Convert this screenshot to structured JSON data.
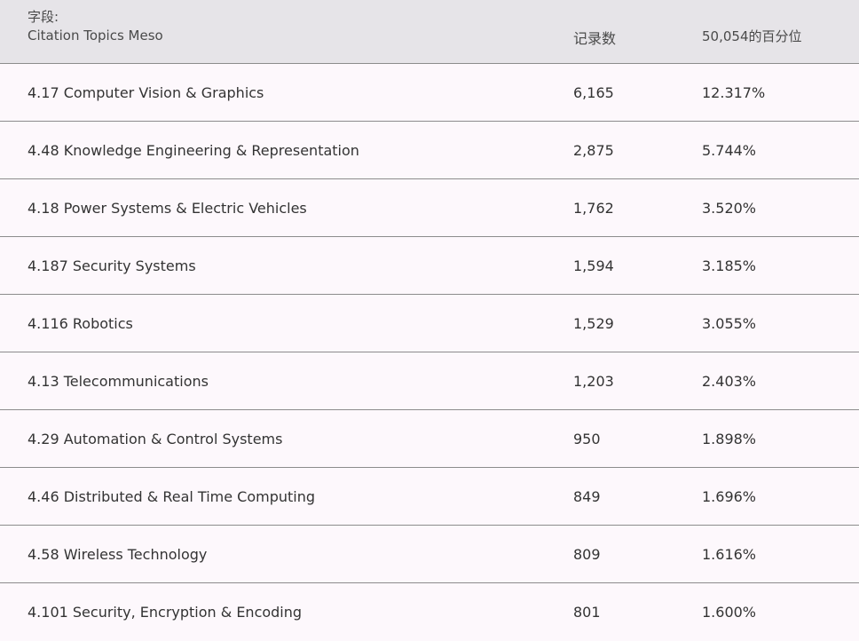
{
  "header": {
    "field_label": "字段:",
    "field_name": "Citation Topics Meso",
    "count_label": "记录数",
    "percent_label": "50,054的百分位"
  },
  "rows": [
    {
      "name": "4.17 Computer Vision & Graphics",
      "count": "6,165",
      "percent": "12.317%"
    },
    {
      "name": "4.48 Knowledge Engineering & Representation",
      "count": "2,875",
      "percent": "5.744%"
    },
    {
      "name": "4.18 Power Systems & Electric Vehicles",
      "count": "1,762",
      "percent": "3.520%"
    },
    {
      "name": "4.187 Security Systems",
      "count": "1,594",
      "percent": "3.185%"
    },
    {
      "name": "4.116 Robotics",
      "count": "1,529",
      "percent": "3.055%"
    },
    {
      "name": "4.13 Telecommunications",
      "count": "1,203",
      "percent": "2.403%"
    },
    {
      "name": "4.29 Automation & Control Systems",
      "count": "950",
      "percent": "1.898%"
    },
    {
      "name": "4.46 Distributed & Real Time Computing",
      "count": "849",
      "percent": "1.696%"
    },
    {
      "name": "4.58 Wireless Technology",
      "count": "809",
      "percent": "1.616%"
    },
    {
      "name": "4.101 Security, Encryption & Encoding",
      "count": "801",
      "percent": "1.600%"
    }
  ]
}
